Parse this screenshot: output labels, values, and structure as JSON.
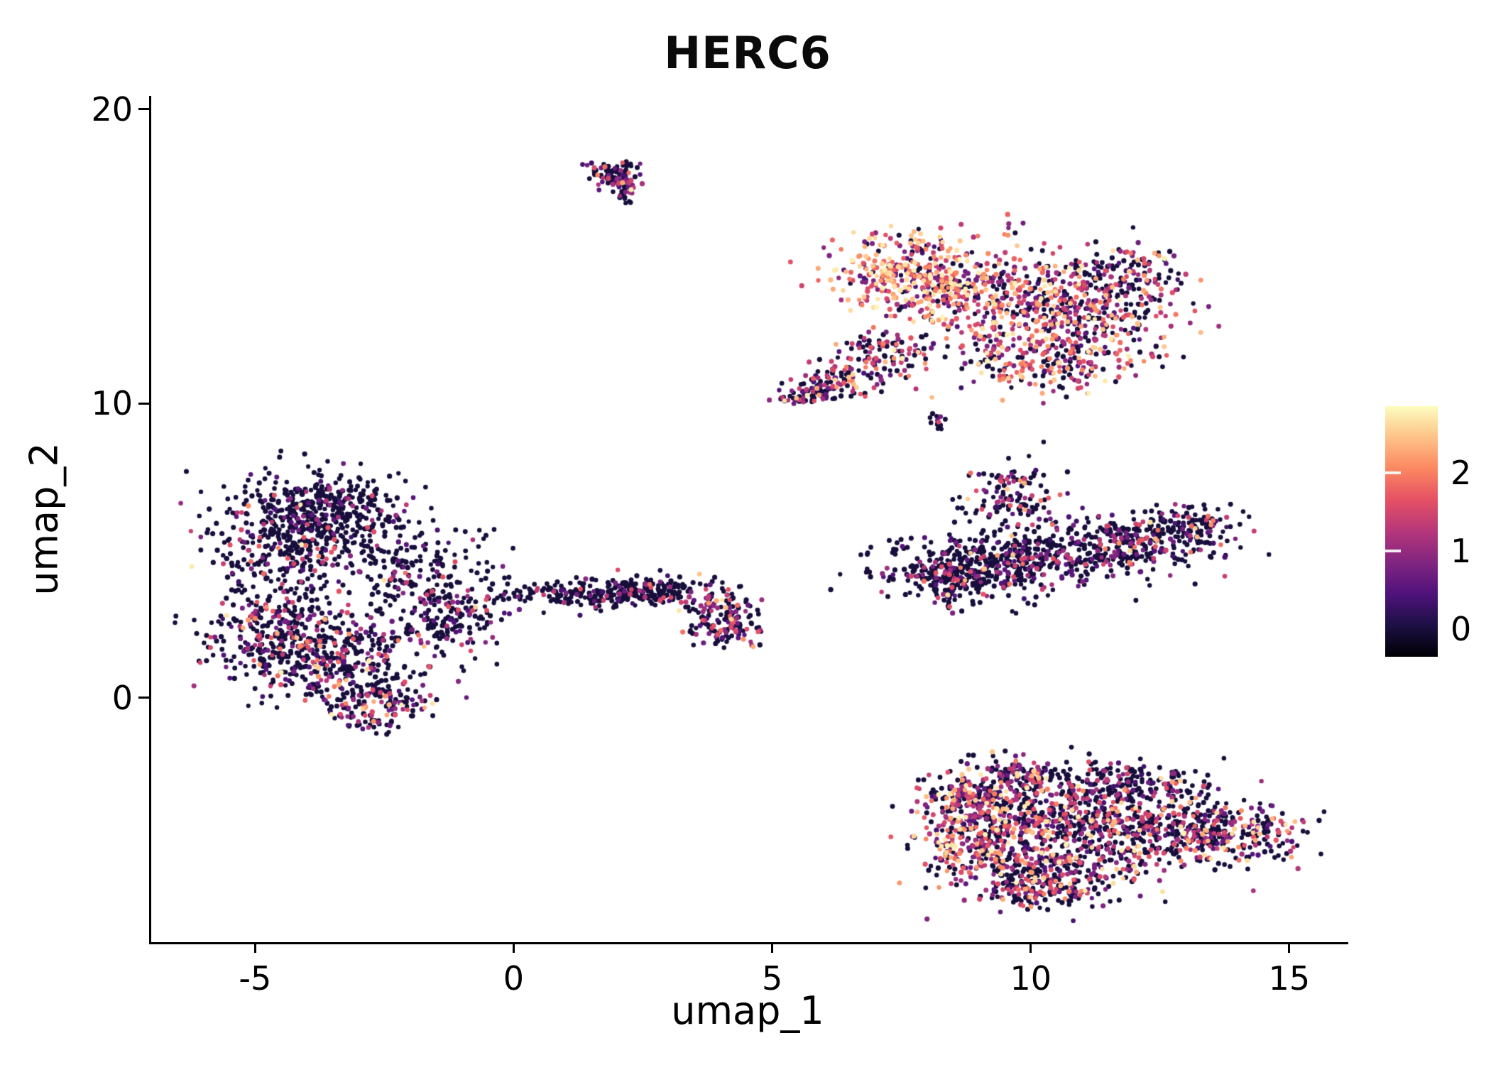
{
  "colors": {
    "background": "#ffffff",
    "axis": "#000000",
    "text": "#000000",
    "title": "#0a0a0a"
  },
  "chart_data": {
    "type": "scatter",
    "title": "HERC6",
    "xlabel": "umap_1",
    "ylabel": "umap_2",
    "xticks": [
      -5,
      0,
      5,
      10,
      15
    ],
    "yticks": [
      0,
      10,
      20
    ],
    "xlim": [
      -7.05,
      16.1
    ],
    "ylim": [
      -8.3,
      20.45
    ],
    "grid": false,
    "legend_position": "right",
    "point_radius": 3.1,
    "colorbar": {
      "ticks": [
        0,
        1,
        2
      ],
      "domain": [
        -0.35,
        2.85
      ],
      "colormap": "magma",
      "stops": [
        [
          0.0,
          0,
          0,
          4
        ],
        [
          0.125,
          28,
          16,
          68
        ],
        [
          0.25,
          79,
          18,
          123
        ],
        [
          0.375,
          129,
          37,
          129
        ],
        [
          0.5,
          181,
          54,
          122
        ],
        [
          0.625,
          229,
          80,
          100
        ],
        [
          0.75,
          251,
          135,
          97
        ],
        [
          0.875,
          254,
          194,
          135
        ],
        [
          1.0,
          252,
          253,
          191
        ]
      ]
    },
    "clusters": [
      {
        "name": "top-small-a",
        "n": 70,
        "cx": 1.9,
        "cy": 17.85,
        "sx": 0.28,
        "sy": 0.22,
        "expr": [
          0.55,
          0.15,
          0.2,
          0.1
        ]
      },
      {
        "name": "top-small-b",
        "n": 25,
        "cx": 2.05,
        "cy": 17.4,
        "sx": 0.16,
        "sy": 0.18,
        "expr": [
          0.55,
          0.15,
          0.2,
          0.1
        ]
      },
      {
        "name": "top-small-tail",
        "n": 12,
        "cx": 2.15,
        "cy": 17.05,
        "sx": 0.1,
        "sy": 0.12,
        "expr": [
          0.6,
          0.2,
          0.2,
          0.0
        ]
      },
      {
        "name": "topright-hot-left",
        "n": 300,
        "cx": 7.6,
        "cy": 14.4,
        "sx": 0.75,
        "sy": 0.65,
        "expr": [
          0.12,
          0.08,
          0.3,
          0.5
        ]
      },
      {
        "name": "topright-mid",
        "n": 350,
        "cx": 9.3,
        "cy": 13.7,
        "sx": 1.0,
        "sy": 0.85,
        "expr": [
          0.25,
          0.1,
          0.3,
          0.35
        ]
      },
      {
        "name": "topright-right",
        "n": 300,
        "cx": 10.9,
        "cy": 13.0,
        "sx": 1.0,
        "sy": 0.75,
        "expr": [
          0.35,
          0.12,
          0.28,
          0.25
        ]
      },
      {
        "name": "topright-dark-tip",
        "n": 150,
        "cx": 11.7,
        "cy": 14.3,
        "sx": 0.65,
        "sy": 0.5,
        "expr": [
          0.6,
          0.1,
          0.18,
          0.12
        ]
      },
      {
        "name": "topright-lower",
        "n": 200,
        "cx": 10.3,
        "cy": 11.4,
        "sx": 0.9,
        "sy": 0.5,
        "expr": [
          0.3,
          0.1,
          0.3,
          0.3
        ]
      },
      {
        "name": "topright-neck",
        "n": 90,
        "cx": 7.1,
        "cy": 11.8,
        "sx": 0.45,
        "sy": 0.45,
        "expr": [
          0.35,
          0.15,
          0.3,
          0.2
        ]
      },
      {
        "name": "topright-arm-a",
        "n": 80,
        "cx": 6.4,
        "cy": 10.9,
        "sx": 0.5,
        "sy": 0.3,
        "expr": [
          0.45,
          0.15,
          0.25,
          0.15
        ]
      },
      {
        "name": "topright-arm-b",
        "n": 40,
        "cx": 5.95,
        "cy": 10.5,
        "sx": 0.25,
        "sy": 0.15,
        "expr": [
          0.55,
          0.15,
          0.2,
          0.1
        ]
      },
      {
        "name": "topright-arm-c",
        "n": 40,
        "cx": 5.55,
        "cy": 10.2,
        "sx": 0.3,
        "sy": 0.1,
        "expr": [
          0.6,
          0.15,
          0.15,
          0.1
        ]
      },
      {
        "name": "tiny-blob",
        "n": 14,
        "cx": 8.15,
        "cy": 9.35,
        "sx": 0.12,
        "sy": 0.15,
        "expr": [
          0.8,
          0.1,
          0.1,
          0.0
        ]
      },
      {
        "name": "midright-a",
        "n": 350,
        "cx": 9.0,
        "cy": 4.4,
        "sx": 0.9,
        "sy": 0.6,
        "expr": [
          0.78,
          0.08,
          0.11,
          0.03
        ]
      },
      {
        "name": "midright-b",
        "n": 300,
        "cx": 10.8,
        "cy": 4.9,
        "sx": 1.0,
        "sy": 0.55,
        "expr": [
          0.75,
          0.1,
          0.12,
          0.03
        ]
      },
      {
        "name": "midright-c",
        "n": 200,
        "cx": 12.3,
        "cy": 5.4,
        "sx": 0.8,
        "sy": 0.45,
        "expr": [
          0.68,
          0.12,
          0.15,
          0.05
        ]
      },
      {
        "name": "midright-top",
        "n": 120,
        "cx": 9.6,
        "cy": 6.9,
        "sx": 0.45,
        "sy": 0.55,
        "expr": [
          0.6,
          0.1,
          0.2,
          0.1
        ]
      },
      {
        "name": "midright-left",
        "n": 100,
        "cx": 8.3,
        "cy": 4.0,
        "sx": 0.5,
        "sy": 0.4,
        "expr": [
          0.75,
          0.1,
          0.12,
          0.03
        ]
      },
      {
        "name": "midright-tip",
        "n": 60,
        "cx": 13.1,
        "cy": 5.9,
        "sx": 0.45,
        "sy": 0.3,
        "expr": [
          0.65,
          0.12,
          0.18,
          0.05
        ]
      },
      {
        "name": "left-upper-a",
        "n": 400,
        "cx": -4.4,
        "cy": 5.6,
        "sx": 0.75,
        "sy": 1.0,
        "expr": [
          0.82,
          0.08,
          0.08,
          0.02
        ]
      },
      {
        "name": "left-upper-b",
        "n": 250,
        "cx": -3.3,
        "cy": 6.3,
        "sx": 0.7,
        "sy": 0.65,
        "expr": [
          0.85,
          0.07,
          0.07,
          0.01
        ]
      },
      {
        "name": "left-lower-a",
        "n": 350,
        "cx": -4.5,
        "cy": 2.2,
        "sx": 0.75,
        "sy": 0.9,
        "expr": [
          0.66,
          0.12,
          0.17,
          0.05
        ]
      },
      {
        "name": "left-lower-b",
        "n": 300,
        "cx": -3.2,
        "cy": 1.0,
        "sx": 0.8,
        "sy": 0.8,
        "expr": [
          0.6,
          0.13,
          0.2,
          0.07
        ]
      },
      {
        "name": "left-mid-sparse",
        "n": 150,
        "cx": -2.0,
        "cy": 4.2,
        "sx": 0.6,
        "sy": 0.9,
        "expr": [
          0.85,
          0.07,
          0.07,
          0.01
        ]
      },
      {
        "name": "left-mid-b",
        "n": 100,
        "cx": -1.3,
        "cy": 2.6,
        "sx": 0.5,
        "sy": 0.5,
        "expr": [
          0.7,
          0.12,
          0.15,
          0.03
        ]
      },
      {
        "name": "left-bottom",
        "n": 120,
        "cx": -2.6,
        "cy": -0.3,
        "sx": 0.55,
        "sy": 0.4,
        "expr": [
          0.55,
          0.12,
          0.22,
          0.11
        ]
      },
      {
        "name": "left-scatter",
        "n": 60,
        "cx": -1.1,
        "cy": 4.0,
        "sx": 0.7,
        "sy": 1.1,
        "expr": [
          0.85,
          0.07,
          0.07,
          0.01
        ]
      },
      {
        "name": "mid-band-a",
        "n": 120,
        "cx": 1.3,
        "cy": 3.5,
        "sx": 0.5,
        "sy": 0.22,
        "expr": [
          0.88,
          0.05,
          0.06,
          0.01
        ]
      },
      {
        "name": "mid-band-b",
        "n": 100,
        "cx": 2.3,
        "cy": 3.6,
        "sx": 0.35,
        "sy": 0.28,
        "expr": [
          0.85,
          0.06,
          0.08,
          0.01
        ]
      },
      {
        "name": "mid-band-c",
        "n": 60,
        "cx": 3.0,
        "cy": 3.6,
        "sx": 0.25,
        "sy": 0.22,
        "expr": [
          0.8,
          0.08,
          0.1,
          0.02
        ]
      },
      {
        "name": "mid-band-d",
        "n": 130,
        "cx": 3.9,
        "cy": 3.0,
        "sx": 0.35,
        "sy": 0.5,
        "expr": [
          0.6,
          0.12,
          0.2,
          0.08
        ]
      },
      {
        "name": "mid-band-e",
        "n": 50,
        "cx": 4.3,
        "cy": 2.3,
        "sx": 0.25,
        "sy": 0.3,
        "expr": [
          0.55,
          0.15,
          0.2,
          0.1
        ]
      },
      {
        "name": "bottom-left-a",
        "n": 250,
        "cx": 9.0,
        "cy": -3.3,
        "sx": 0.6,
        "sy": 0.55,
        "expr": [
          0.4,
          0.12,
          0.28,
          0.2
        ]
      },
      {
        "name": "bottom-left-b",
        "n": 250,
        "cx": 8.9,
        "cy": -5.0,
        "sx": 0.55,
        "sy": 0.7,
        "expr": [
          0.35,
          0.12,
          0.28,
          0.25
        ]
      },
      {
        "name": "bottom-mid-low",
        "n": 300,
        "cx": 10.5,
        "cy": -5.7,
        "sx": 0.9,
        "sy": 0.6,
        "expr": [
          0.45,
          0.12,
          0.28,
          0.15
        ]
      },
      {
        "name": "bottom-mid",
        "n": 350,
        "cx": 10.8,
        "cy": -4.0,
        "sx": 1.0,
        "sy": 0.75,
        "expr": [
          0.55,
          0.12,
          0.23,
          0.1
        ]
      },
      {
        "name": "bottom-right-a",
        "n": 300,
        "cx": 12.5,
        "cy": -4.3,
        "sx": 1.0,
        "sy": 0.65,
        "expr": [
          0.6,
          0.1,
          0.2,
          0.1
        ]
      },
      {
        "name": "bottom-right-tip",
        "n": 200,
        "cx": 13.9,
        "cy": -4.6,
        "sx": 0.7,
        "sy": 0.55,
        "expr": [
          0.5,
          0.12,
          0.23,
          0.15
        ]
      },
      {
        "name": "bottom-top-edge",
        "n": 150,
        "cx": 12.0,
        "cy": -2.9,
        "sx": 0.8,
        "sy": 0.35,
        "expr": [
          0.7,
          0.1,
          0.15,
          0.05
        ]
      },
      {
        "name": "bottom-under",
        "n": 100,
        "cx": 10.2,
        "cy": -6.5,
        "sx": 0.6,
        "sy": 0.35,
        "expr": [
          0.45,
          0.15,
          0.25,
          0.15
        ]
      },
      {
        "name": "bottom-top-left",
        "n": 80,
        "cx": 9.9,
        "cy": -2.6,
        "sx": 0.4,
        "sy": 0.25,
        "expr": [
          0.65,
          0.1,
          0.18,
          0.07
        ]
      },
      {
        "name": "noise-a",
        "n": 25,
        "cx": -0.9,
        "cy": 3.6,
        "sx": 0.7,
        "sy": 0.4,
        "expr": [
          0.9,
          0.05,
          0.05,
          0.0
        ]
      },
      {
        "name": "noise-b",
        "n": 15,
        "cx": 0.2,
        "cy": 3.5,
        "sx": 0.4,
        "sy": 0.25,
        "expr": [
          0.9,
          0.05,
          0.05,
          0.0
        ]
      }
    ]
  }
}
